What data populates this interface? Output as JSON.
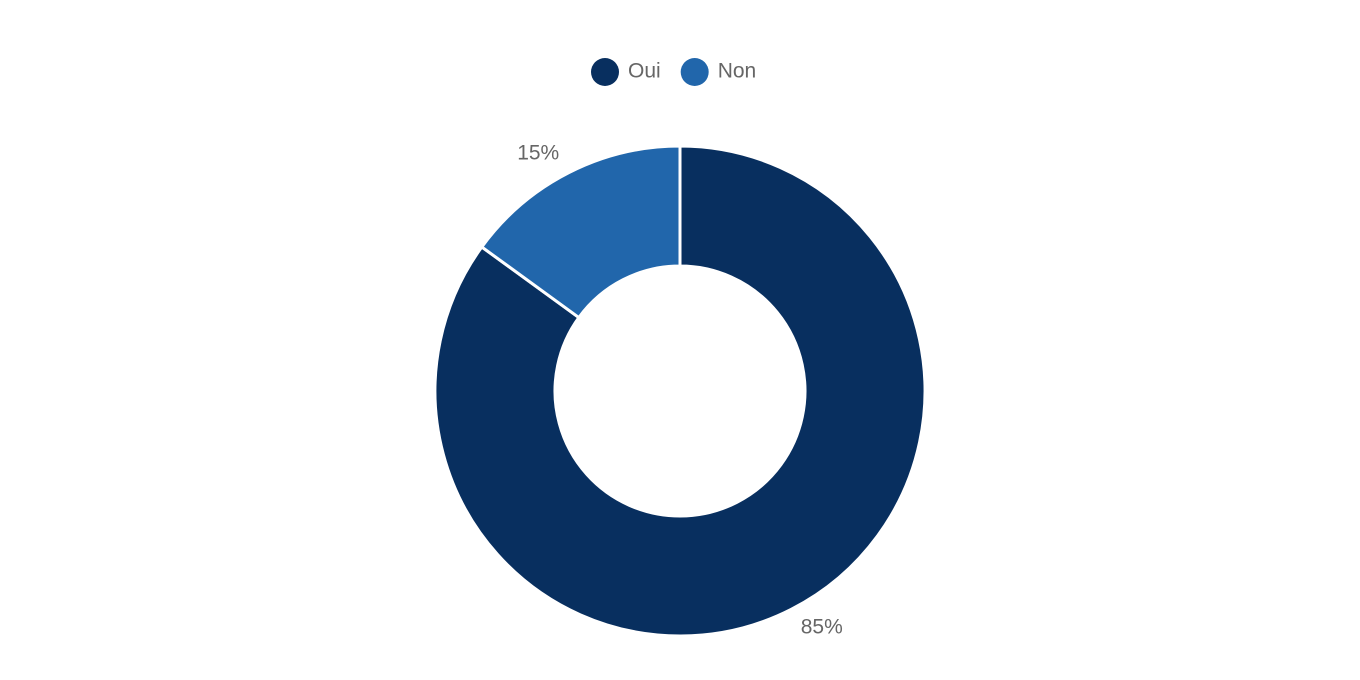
{
  "chart_data": {
    "type": "donut",
    "categories": [
      "Oui",
      "Non"
    ],
    "values": [
      85,
      15
    ],
    "value_labels": [
      "85%",
      "15%"
    ],
    "colors": [
      "#082f5f",
      "#2166ab"
    ],
    "legend": "top"
  }
}
